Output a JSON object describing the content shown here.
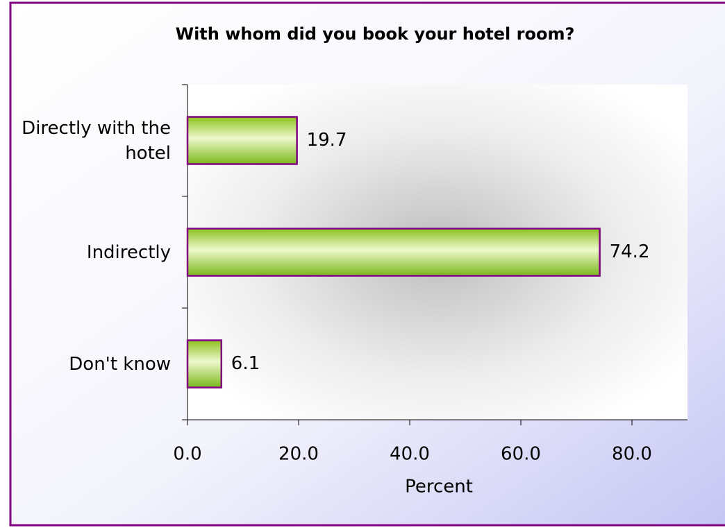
{
  "chart_data": {
    "type": "bar",
    "orientation": "horizontal",
    "title": "With whom did you book your hotel room?",
    "categories": [
      "Directly with the hotel",
      "Indirectly",
      "Don't know"
    ],
    "values": [
      19.7,
      74.2,
      6.1
    ],
    "color": "#9acd32",
    "edge_color": "#800080",
    "xlabel": "Percent",
    "xlim": [
      0,
      90
    ],
    "xticks": [
      {
        "value": 0,
        "label": "0.0"
      },
      {
        "value": 20,
        "label": "20.0"
      },
      {
        "value": 40,
        "label": "40.0"
      },
      {
        "value": 60,
        "label": "60.0"
      },
      {
        "value": 80,
        "label": "80.0"
      }
    ]
  }
}
